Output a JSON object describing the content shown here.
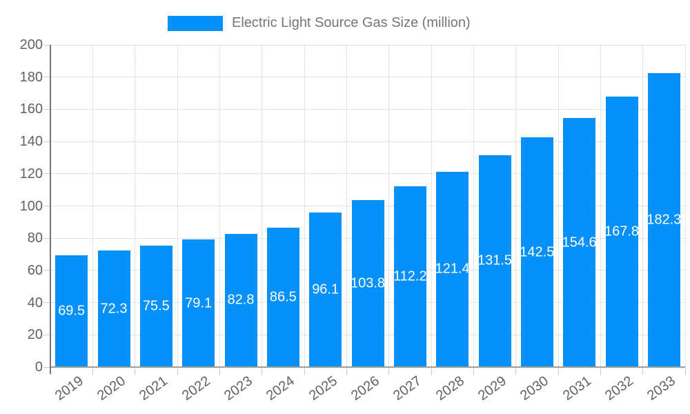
{
  "colors": {
    "bar": "#0590FA",
    "legend_text": "#757575",
    "axis_label": "#616161",
    "grid": "#E2E2E2",
    "y_axis_line": "#737373",
    "x_axis_line": "#9E9E9E",
    "tick": "#C8C8C8",
    "bar_label": "#FFFFFF",
    "background": "#FFFFFF"
  },
  "legend": {
    "label": "Electric Light Source Gas Size (million)",
    "swatch_color": "#0590FA"
  },
  "chart_data": {
    "type": "bar",
    "title": "Electric Light Source Gas Size (million)",
    "categories": [
      "2019",
      "2020",
      "2021",
      "2022",
      "2023",
      "2024",
      "2025",
      "2026",
      "2027",
      "2028",
      "2029",
      "2030",
      "2031",
      "2032",
      "2033"
    ],
    "values": [
      69.5,
      72.3,
      75.5,
      79.1,
      82.8,
      86.5,
      96.1,
      103.8,
      112.2,
      121.4,
      131.5,
      142.5,
      154.6,
      167.8,
      182.3
    ],
    "xlabel": "",
    "ylabel": "",
    "ylim": [
      0,
      200
    ],
    "yticks": [
      0,
      20,
      40,
      60,
      80,
      100,
      120,
      140,
      160,
      180,
      200
    ],
    "grid": true,
    "legend_position": "top",
    "bar_labels": "inside-center",
    "value_decimals": 1
  }
}
